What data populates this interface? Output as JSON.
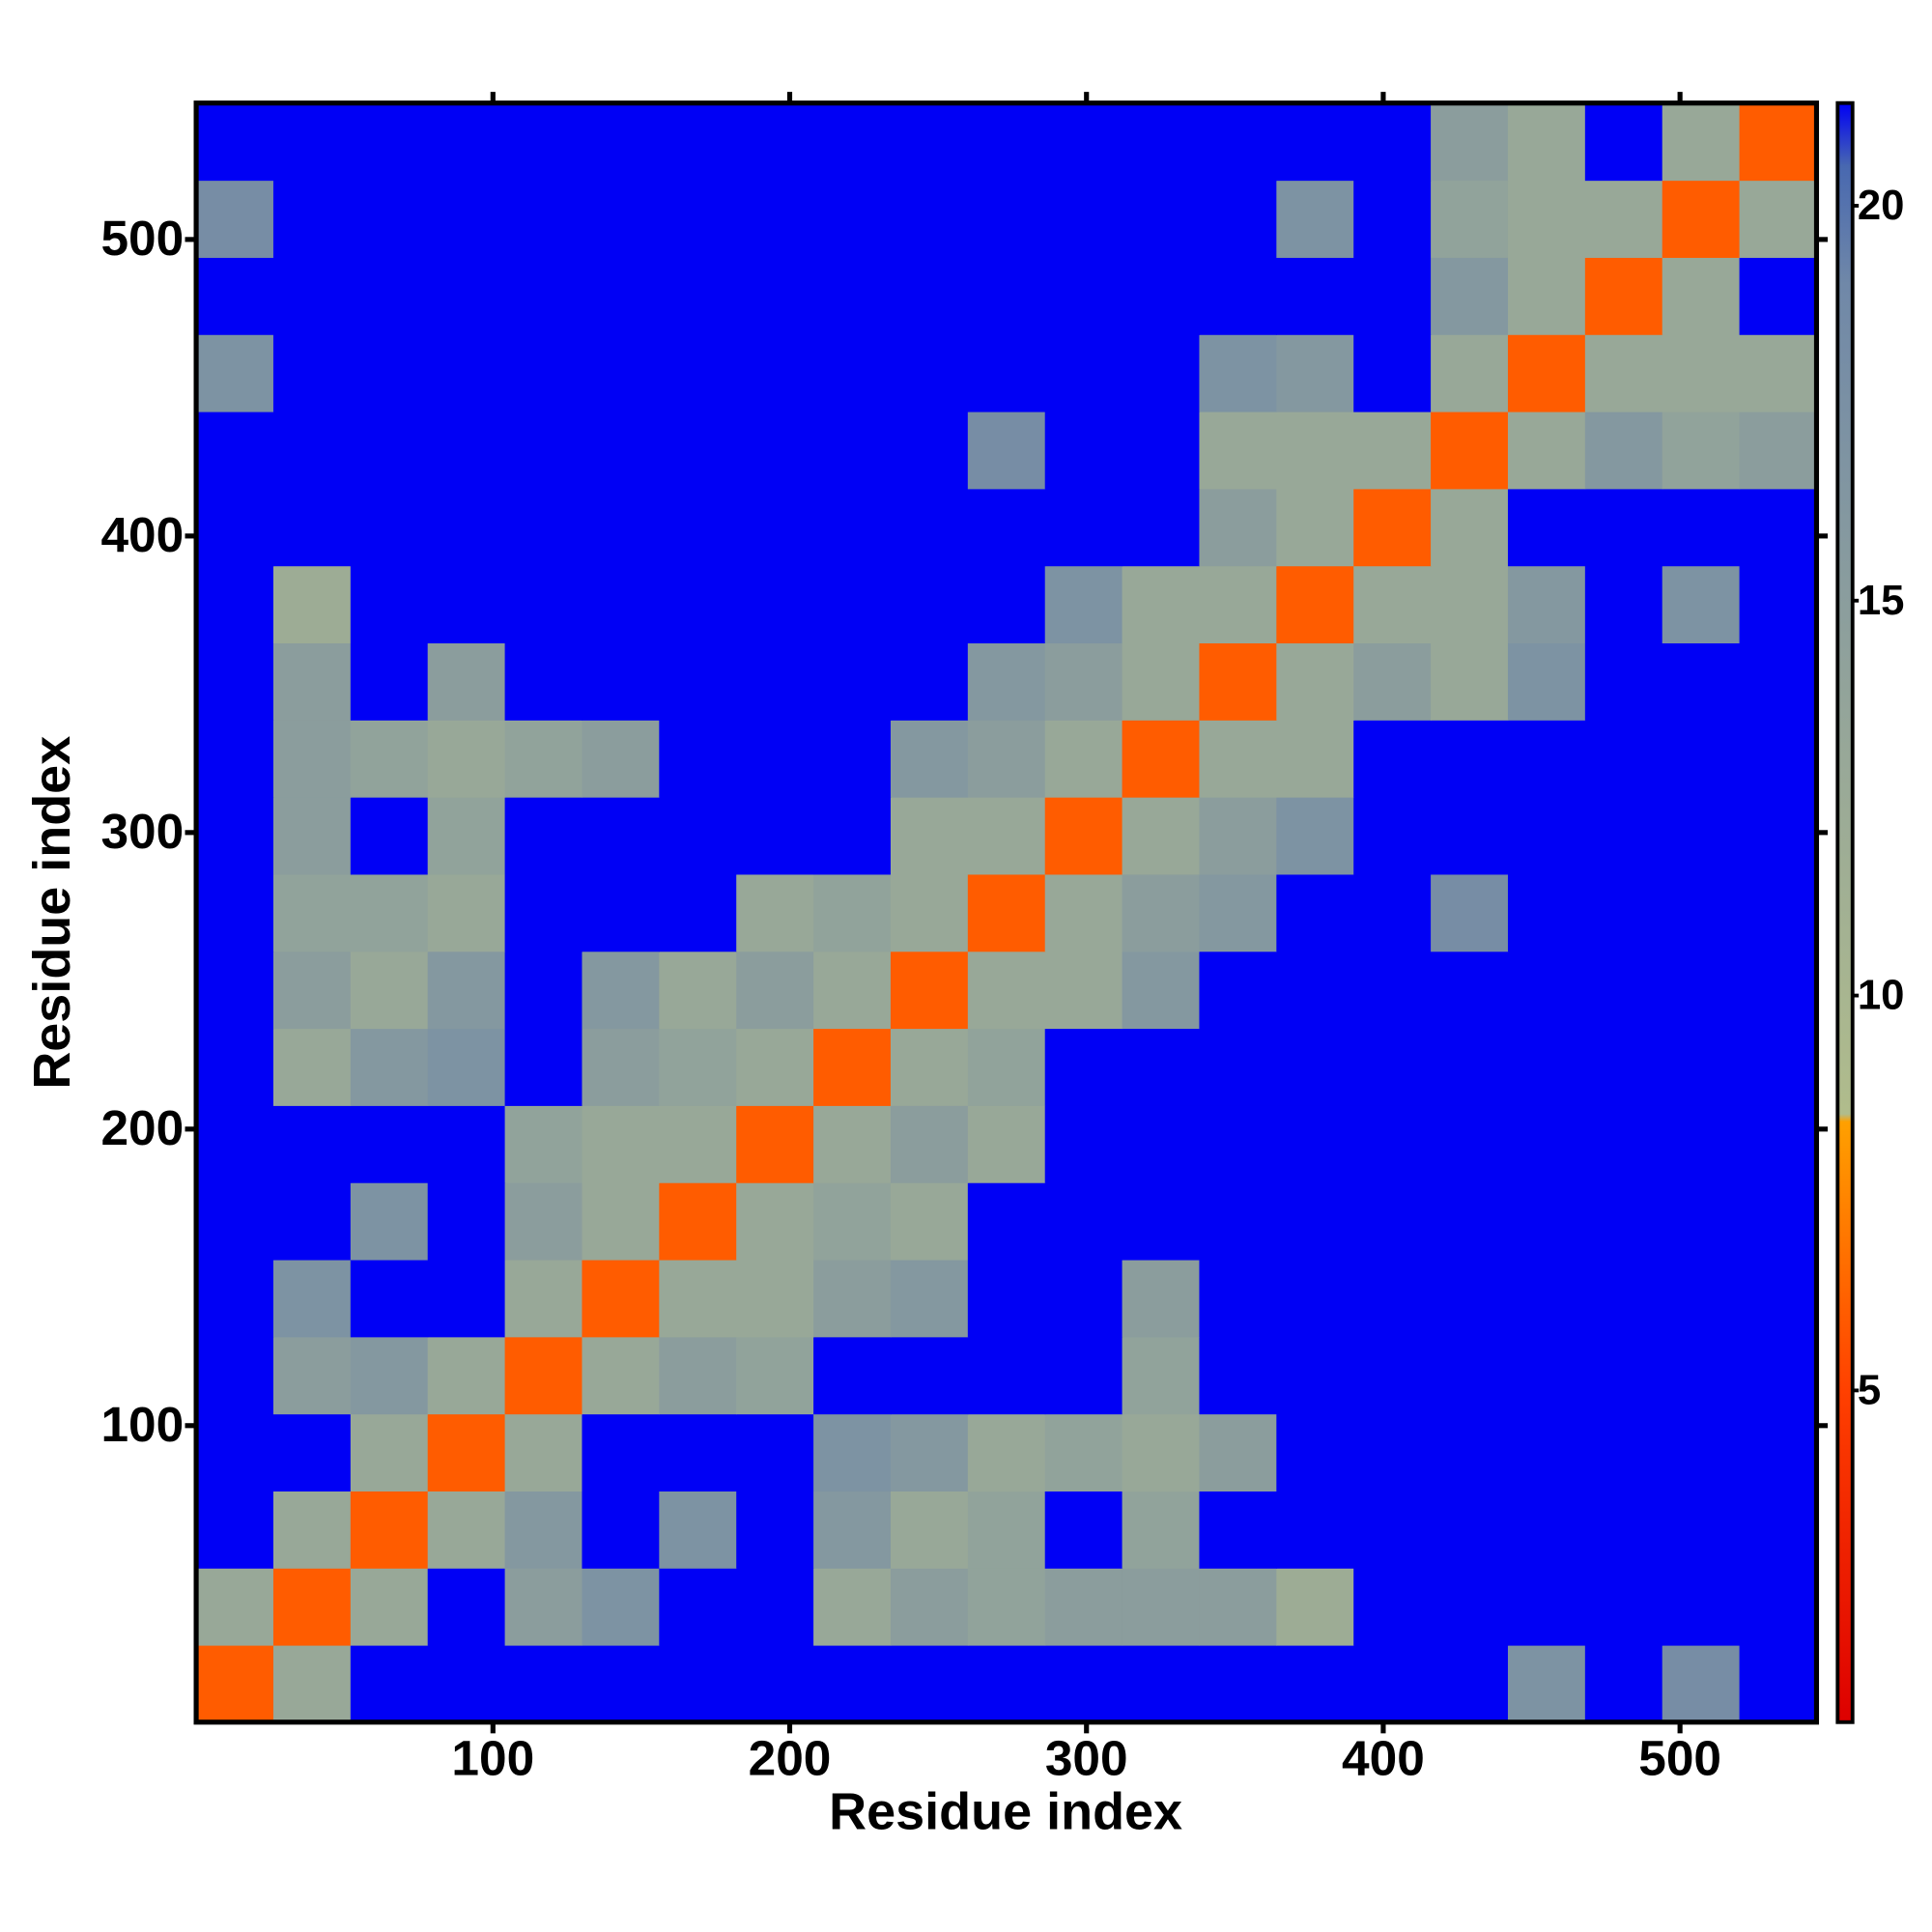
{
  "chart_data": {
    "type": "heatmap",
    "x_label": "Residue index",
    "y_label": "Residue index",
    "bins": [
      0,
      26,
      52,
      78,
      104,
      130,
      156,
      182,
      208,
      234,
      260,
      286,
      312,
      338,
      364,
      390,
      416,
      442,
      468,
      494,
      520,
      546
    ],
    "xlim": [
      0,
      546
    ],
    "ylim": [
      0,
      546
    ],
    "xticks": [
      100,
      200,
      300,
      400,
      500
    ],
    "yticks": [
      100,
      200,
      300,
      400,
      500
    ],
    "values": [
      [
        6,
        13,
        22,
        22,
        22,
        22,
        22,
        22,
        22,
        22,
        22,
        22,
        22,
        22,
        22,
        22,
        22,
        17,
        22,
        18,
        22
      ],
      [
        13,
        6,
        13,
        22,
        15,
        17,
        22,
        22,
        13,
        15,
        14,
        15,
        15,
        15,
        12,
        22,
        22,
        22,
        22,
        22,
        22
      ],
      [
        22,
        13,
        6,
        13,
        16,
        22,
        17,
        22,
        16,
        13,
        14,
        22,
        14,
        22,
        22,
        22,
        22,
        22,
        22,
        22,
        22
      ],
      [
        22,
        22,
        13,
        6,
        13,
        22,
        22,
        22,
        17,
        16,
        13,
        14,
        13,
        15,
        22,
        22,
        22,
        22,
        22,
        22,
        22
      ],
      [
        22,
        15,
        16,
        13,
        6,
        13,
        15,
        14,
        22,
        22,
        22,
        22,
        14,
        22,
        22,
        22,
        22,
        22,
        22,
        22,
        22
      ],
      [
        22,
        17,
        22,
        22,
        13,
        6,
        13,
        13,
        15,
        16,
        22,
        22,
        15,
        22,
        22,
        22,
        22,
        22,
        22,
        22,
        22
      ],
      [
        22,
        22,
        17,
        22,
        15,
        13,
        6,
        13,
        14,
        13,
        22,
        22,
        22,
        22,
        22,
        22,
        22,
        22,
        22,
        22,
        22
      ],
      [
        22,
        22,
        22,
        22,
        14,
        13,
        13,
        6,
        13,
        15,
        13,
        22,
        22,
        22,
        22,
        22,
        22,
        22,
        22,
        22,
        22
      ],
      [
        22,
        13,
        16,
        17,
        22,
        15,
        14,
        13,
        6,
        13,
        14,
        22,
        22,
        22,
        22,
        22,
        22,
        22,
        22,
        22,
        22
      ],
      [
        22,
        15,
        13,
        16,
        22,
        16,
        13,
        15,
        13,
        6,
        13,
        13,
        16,
        22,
        22,
        22,
        22,
        22,
        22,
        22,
        22
      ],
      [
        22,
        14,
        14,
        13,
        22,
        22,
        22,
        13,
        14,
        13,
        6,
        13,
        15,
        16,
        22,
        22,
        18,
        22,
        22,
        22,
        22
      ],
      [
        22,
        15,
        22,
        14,
        22,
        22,
        22,
        22,
        22,
        13,
        13,
        6,
        13,
        15,
        17,
        22,
        22,
        22,
        22,
        22,
        22
      ],
      [
        22,
        15,
        14,
        13,
        14,
        15,
        22,
        22,
        22,
        16,
        15,
        13,
        6,
        13,
        13,
        22,
        22,
        22,
        22,
        22,
        22
      ],
      [
        22,
        15,
        22,
        15,
        22,
        22,
        22,
        22,
        22,
        22,
        16,
        15,
        13,
        6,
        13,
        15,
        13,
        17,
        22,
        22,
        22
      ],
      [
        22,
        12,
        22,
        22,
        22,
        22,
        22,
        22,
        22,
        22,
        22,
        17,
        13,
        13,
        6,
        13,
        13,
        16,
        22,
        17,
        22
      ],
      [
        22,
        22,
        22,
        22,
        22,
        22,
        22,
        22,
        22,
        22,
        22,
        22,
        22,
        15,
        13,
        6,
        13,
        22,
        22,
        22,
        22
      ],
      [
        22,
        22,
        22,
        22,
        22,
        22,
        22,
        22,
        22,
        22,
        18,
        22,
        22,
        13,
        13,
        13,
        6,
        13,
        16,
        14,
        15
      ],
      [
        17,
        22,
        22,
        22,
        22,
        22,
        22,
        22,
        22,
        22,
        22,
        22,
        22,
        17,
        16,
        22,
        13,
        6,
        13,
        13,
        13
      ],
      [
        22,
        22,
        22,
        22,
        22,
        22,
        22,
        22,
        22,
        22,
        22,
        22,
        22,
        22,
        22,
        22,
        16,
        13,
        6,
        13,
        22
      ],
      [
        18,
        22,
        22,
        22,
        22,
        22,
        22,
        22,
        22,
        22,
        22,
        22,
        22,
        22,
        17,
        22,
        14,
        13,
        13,
        6,
        13
      ],
      [
        22,
        22,
        22,
        22,
        22,
        22,
        22,
        22,
        22,
        22,
        22,
        22,
        22,
        22,
        22,
        22,
        15,
        13,
        22,
        13,
        6
      ]
    ],
    "colorbar": {
      "lim": [
        0.8,
        21.3
      ],
      "ticks": [
        5,
        10,
        15,
        20
      ],
      "stops": [
        {
          "value": 0.8,
          "color": "#dd0000"
        },
        {
          "value": 5,
          "color": "#ff4000"
        },
        {
          "value": 8.4,
          "color": "#ffa000"
        },
        {
          "value": 8.5,
          "color": "#b0bc8c"
        },
        {
          "value": 13,
          "color": "#98a898"
        },
        {
          "value": 19,
          "color": "#7088a8"
        },
        {
          "value": 20.5,
          "color": "#4868b0"
        },
        {
          "value": 21.3,
          "color": "#0000f5"
        }
      ]
    }
  }
}
